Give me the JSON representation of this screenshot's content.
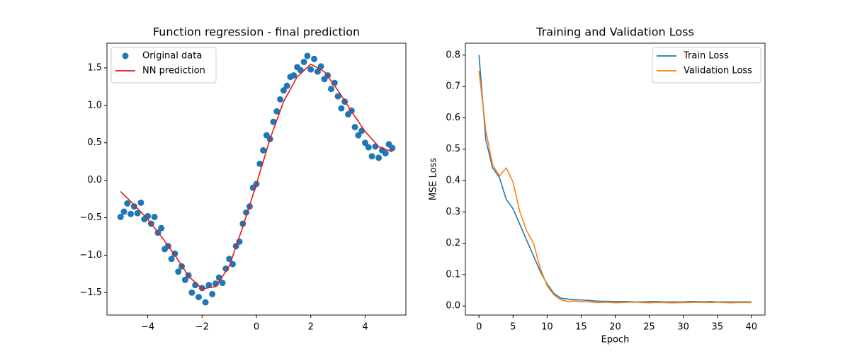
{
  "chart_data": [
    {
      "type": "scatter",
      "title": "Function regression - final prediction",
      "xlim": [
        -5.5,
        5.5
      ],
      "xticks": [
        {
          "value": -4,
          "label": "−4"
        },
        {
          "value": -2,
          "label": "−2"
        },
        0,
        2,
        4
      ],
      "ylim": [
        -1.8,
        1.83
      ],
      "yticks": [
        {
          "value": -1.5,
          "label": "−1.5"
        },
        {
          "value": -1,
          "label": "−1.0"
        },
        {
          "value": -0.5,
          "label": "−0.5"
        },
        {
          "value": 0,
          "label": "0.0"
        },
        0.5,
        {
          "value": 1,
          "label": "1.0"
        },
        1.5
      ],
      "legend": "upper left",
      "series": [
        {
          "name": "Original data",
          "type": "scatter",
          "color": "#1f77b4",
          "x": [
            -5,
            -4.875,
            -4.75,
            -4.625,
            -4.5,
            -4.375,
            -4.25,
            -4.125,
            -4,
            -3.875,
            -3.75,
            -3.625,
            -3.5,
            -3.375,
            -3.25,
            -3.125,
            -3,
            -2.875,
            -2.75,
            -2.625,
            -2.5,
            -2.375,
            -2.25,
            -2.125,
            -2,
            -1.875,
            -1.75,
            -1.625,
            -1.5,
            -1.375,
            -1.25,
            -1.125,
            -1,
            -0.875,
            -0.75,
            -0.625,
            -0.5,
            -0.375,
            -0.25,
            -0.125,
            0,
            0.125,
            0.25,
            0.375,
            0.5,
            0.625,
            0.75,
            0.875,
            1,
            1.125,
            1.25,
            1.375,
            1.5,
            1.625,
            1.75,
            1.875,
            2,
            2.125,
            2.25,
            2.375,
            2.5,
            2.625,
            2.75,
            2.875,
            3,
            3.125,
            3.25,
            3.375,
            3.5,
            3.625,
            3.75,
            3.875,
            4,
            4.125,
            4.25,
            4.375,
            4.5,
            4.625,
            4.75,
            4.875,
            5
          ],
          "values": [
            -0.49,
            -0.42,
            -0.31,
            -0.45,
            -0.35,
            -0.44,
            -0.3,
            -0.52,
            -0.48,
            -0.58,
            -0.49,
            -0.7,
            -0.64,
            -0.92,
            -0.88,
            -1.05,
            -0.98,
            -1.22,
            -1.15,
            -1.33,
            -1.27,
            -1.5,
            -1.4,
            -1.56,
            -1.44,
            -1.63,
            -1.4,
            -1.52,
            -1.38,
            -1.3,
            -1.37,
            -1.18,
            -1.05,
            -1.12,
            -0.88,
            -0.82,
            -0.58,
            -0.43,
            -0.35,
            -0.1,
            -0.05,
            0.22,
            0.4,
            0.6,
            0.55,
            0.78,
            0.92,
            1.08,
            1.2,
            1.26,
            1.38,
            1.4,
            1.51,
            1.47,
            1.58,
            1.66,
            1.48,
            1.62,
            1.45,
            1.52,
            1.35,
            1.4,
            1.22,
            1.3,
            1.12,
            0.96,
            1.05,
            0.88,
            0.93,
            0.71,
            0.6,
            0.66,
            0.5,
            0.44,
            0.32,
            0.45,
            0.3,
            0.4,
            0.36,
            0.48,
            0.43
          ]
        },
        {
          "name": "NN prediction",
          "type": "line",
          "color": "#e41a1c",
          "x": [
            -5,
            -4.5,
            -4,
            -3.5,
            -3,
            -2.5,
            -2,
            -1.5,
            -1,
            -0.5,
            0,
            0.5,
            1,
            1.5,
            2,
            2.5,
            3,
            3.5,
            4,
            4.5,
            5
          ],
          "values": [
            -0.15,
            -0.33,
            -0.52,
            -0.75,
            -1.0,
            -1.28,
            -1.45,
            -1.42,
            -1.15,
            -0.62,
            -0.05,
            0.55,
            1.05,
            1.38,
            1.55,
            1.45,
            1.2,
            0.92,
            0.65,
            0.45,
            0.38
          ]
        }
      ]
    },
    {
      "type": "line",
      "title": "Training and Validation Loss",
      "xlabel": "Epoch",
      "ylabel": "MSE Loss",
      "xlim": [
        -2,
        42
      ],
      "xticks": [
        0,
        5,
        10,
        15,
        20,
        25,
        30,
        35,
        40
      ],
      "ylim": [
        -0.029,
        0.838
      ],
      "yticks": [
        {
          "value": 0,
          "label": "0.0"
        },
        0.1,
        0.2,
        0.3,
        0.4,
        0.5,
        0.6,
        0.7,
        0.8
      ],
      "legend": "upper right",
      "x": [
        0,
        1,
        2,
        3,
        4,
        5,
        6,
        7,
        8,
        9,
        10,
        11,
        12,
        13,
        14,
        15,
        16,
        17,
        18,
        19,
        20,
        21,
        22,
        23,
        24,
        25,
        26,
        27,
        28,
        29,
        30,
        31,
        32,
        33,
        34,
        35,
        36,
        37,
        38,
        39,
        40
      ],
      "series": [
        {
          "name": "Train Loss",
          "color": "#1f77b4",
          "values": [
            0.8,
            0.53,
            0.44,
            0.41,
            0.34,
            0.31,
            0.26,
            0.21,
            0.16,
            0.11,
            0.07,
            0.04,
            0.025,
            0.022,
            0.02,
            0.019,
            0.018,
            0.016,
            0.015,
            0.015,
            0.014,
            0.014,
            0.014,
            0.013,
            0.013,
            0.014,
            0.014,
            0.013,
            0.013,
            0.013,
            0.013,
            0.014,
            0.014,
            0.013,
            0.014,
            0.013,
            0.013,
            0.013,
            0.013,
            0.013,
            0.013
          ]
        },
        {
          "name": "Validation Loss",
          "color": "#ff7f0e",
          "values": [
            0.75,
            0.56,
            0.45,
            0.415,
            0.44,
            0.395,
            0.3,
            0.24,
            0.2,
            0.12,
            0.065,
            0.035,
            0.02,
            0.014,
            0.016,
            0.013,
            0.014,
            0.011,
            0.011,
            0.012,
            0.01,
            0.011,
            0.012,
            0.012,
            0.011,
            0.01,
            0.011,
            0.011,
            0.01,
            0.01,
            0.011,
            0.011,
            0.012,
            0.011,
            0.011,
            0.012,
            0.011,
            0.01,
            0.011,
            0.011,
            0.011
          ]
        }
      ]
    }
  ]
}
